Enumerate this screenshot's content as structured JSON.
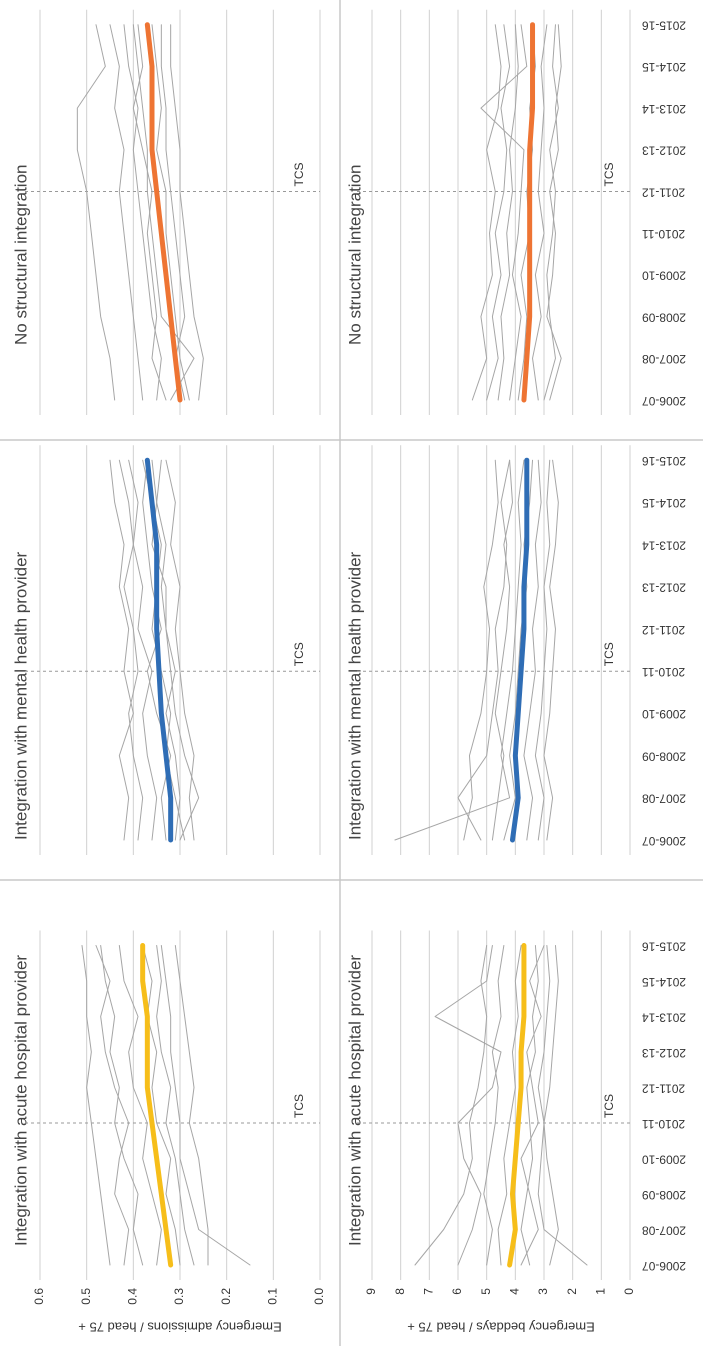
{
  "chart_data": [
    {
      "type": "line",
      "title": "Integration with acute hospital provider",
      "ylabel": "Emergency admissions / head 75 +",
      "show_yticks": true,
      "categories": [
        null,
        null,
        null,
        null,
        null,
        null,
        null,
        null,
        null,
        null
      ],
      "ylim": [
        0,
        0.6
      ],
      "yticks": [
        {
          "value": 0,
          "label": "0.0"
        },
        0.1,
        0.2,
        0.3,
        0.4,
        0.5,
        0.6
      ],
      "grid": true,
      "annotation": {
        "text": "TCS",
        "x": "2010-11"
      },
      "series": [
        {
          "color": "#a6a6a6",
          "values": [
            0.15,
            0.26,
            0.28,
            0.3,
            0.3,
            0.31,
            0.32,
            0.32,
            0.33,
            0.34
          ]
        },
        {
          "color": "#a6a6a6",
          "values": [
            0.45,
            0.46,
            0.47,
            0.48,
            0.49,
            0.5,
            0.49,
            0.5,
            0.5,
            0.51
          ]
        },
        {
          "color": "#a6a6a6",
          "values": [
            0.24,
            0.24,
            0.25,
            0.26,
            0.28,
            0.27,
            0.28,
            0.29,
            0.3,
            0.31
          ]
        },
        {
          "color": "#a6a6a6",
          "values": [
            0.38,
            0.4,
            0.39,
            0.42,
            0.44,
            0.43,
            0.45,
            0.44,
            0.46,
            0.47
          ]
        },
        {
          "color": "#a6a6a6",
          "values": [
            0.3,
            0.31,
            0.33,
            0.32,
            0.35,
            0.36,
            0.35,
            0.37,
            0.36,
            0.38
          ]
        },
        {
          "color": "#a6a6a6",
          "values": [
            0.35,
            0.34,
            0.36,
            0.38,
            0.37,
            0.4,
            0.41,
            0.39,
            0.42,
            0.43
          ]
        },
        {
          "color": "#a6a6a6",
          "values": [
            0.27,
            0.29,
            0.3,
            0.31,
            0.33,
            0.32,
            0.34,
            0.35,
            0.34,
            0.35
          ]
        },
        {
          "color": "#a6a6a6",
          "values": [
            0.42,
            0.41,
            0.44,
            0.43,
            0.41,
            0.44,
            0.46,
            0.47,
            0.45,
            0.48
          ]
        },
        {
          "color": "#f6be1a",
          "highlight": true,
          "values": [
            0.32,
            0.33,
            0.34,
            0.35,
            0.36,
            0.37,
            0.37,
            0.37,
            0.38,
            0.38
          ]
        }
      ]
    },
    {
      "type": "line",
      "title": "Integration with mental health provider",
      "show_yticks": false,
      "categories": [
        null,
        null,
        null,
        null,
        null,
        null,
        null,
        null,
        null,
        null
      ],
      "ylim": [
        0,
        0.6
      ],
      "yticks": [
        0,
        0.1,
        0.2,
        0.3,
        0.4,
        0.5,
        0.6
      ],
      "grid": true,
      "annotation": {
        "text": "TCS",
        "x": "2010-11"
      },
      "series": [
        {
          "color": "#a6a6a6",
          "values": [
            0.3,
            0.26,
            0.29,
            0.31,
            0.32,
            0.33,
            0.34,
            0.33,
            0.35,
            0.36
          ]
        },
        {
          "color": "#a6a6a6",
          "values": [
            0.42,
            0.41,
            0.43,
            0.4,
            0.42,
            0.41,
            0.43,
            0.42,
            0.44,
            0.45
          ]
        },
        {
          "color": "#a6a6a6",
          "values": [
            0.27,
            0.28,
            0.27,
            0.29,
            0.3,
            0.31,
            0.3,
            0.32,
            0.31,
            0.33
          ]
        },
        {
          "color": "#a6a6a6",
          "values": [
            0.36,
            0.35,
            0.37,
            0.38,
            0.36,
            0.39,
            0.38,
            0.4,
            0.39,
            0.41
          ]
        },
        {
          "color": "#a6a6a6",
          "values": [
            0.33,
            0.34,
            0.32,
            0.35,
            0.37,
            0.34,
            0.36,
            0.37,
            0.38,
            0.37
          ]
        },
        {
          "color": "#a6a6a6",
          "values": [
            0.29,
            0.31,
            0.33,
            0.32,
            0.34,
            0.36,
            0.35,
            0.34,
            0.36,
            0.38
          ]
        },
        {
          "color": "#a6a6a6",
          "values": [
            0.39,
            0.38,
            0.4,
            0.41,
            0.39,
            0.4,
            0.42,
            0.4,
            0.41,
            0.43
          ]
        },
        {
          "color": "#a6a6a6",
          "values": [
            0.31,
            0.3,
            0.31,
            0.33,
            0.31,
            0.33,
            0.33,
            0.36,
            0.35,
            0.34
          ]
        },
        {
          "color": "#2f6db5",
          "highlight": true,
          "values": [
            0.32,
            0.32,
            0.33,
            0.34,
            0.345,
            0.35,
            0.35,
            0.35,
            0.36,
            0.37
          ]
        }
      ]
    },
    {
      "type": "line",
      "title": "No structural integration",
      "show_yticks": false,
      "categories": [
        null,
        null,
        null,
        null,
        null,
        null,
        null,
        null,
        null,
        null
      ],
      "ylim": [
        0,
        0.6
      ],
      "yticks": [
        0,
        0.1,
        0.2,
        0.3,
        0.4,
        0.5,
        0.6
      ],
      "grid": true,
      "annotation": {
        "text": "TCS",
        "x": "2011-12"
      },
      "series": [
        {
          "color": "#a6a6a6",
          "values": [
            0.26,
            0.25,
            0.27,
            0.28,
            0.29,
            0.3,
            0.3,
            0.31,
            0.32,
            0.32
          ]
        },
        {
          "color": "#a6a6a6",
          "values": [
            0.44,
            0.45,
            0.47,
            0.48,
            0.49,
            0.5,
            0.52,
            0.52,
            0.46,
            0.48
          ]
        },
        {
          "color": "#a6a6a6",
          "values": [
            0.32,
            0.27,
            0.34,
            0.35,
            0.36,
            0.37,
            0.37,
            0.38,
            0.39,
            0.4
          ]
        },
        {
          "color": "#a6a6a6",
          "values": [
            0.38,
            0.39,
            0.4,
            0.41,
            0.42,
            0.43,
            0.42,
            0.44,
            0.43,
            0.45
          ]
        },
        {
          "color": "#a6a6a6",
          "values": [
            0.28,
            0.3,
            0.31,
            0.32,
            0.33,
            0.33,
            0.35,
            0.34,
            0.35,
            0.36
          ]
        },
        {
          "color": "#a6a6a6",
          "values": [
            0.35,
            0.34,
            0.36,
            0.37,
            0.38,
            0.39,
            0.4,
            0.39,
            0.41,
            0.42
          ]
        },
        {
          "color": "#a6a6a6",
          "values": [
            0.29,
            0.31,
            0.29,
            0.3,
            0.31,
            0.32,
            0.33,
            0.33,
            0.34,
            0.34
          ]
        },
        {
          "color": "#a6a6a6",
          "values": [
            0.33,
            0.36,
            0.35,
            0.36,
            0.37,
            0.36,
            0.38,
            0.4,
            0.38,
            0.39
          ]
        },
        {
          "color": "#ee7433",
          "highlight": true,
          "values": [
            0.3,
            0.31,
            0.32,
            0.33,
            0.34,
            0.35,
            0.36,
            0.36,
            0.36,
            0.37
          ]
        }
      ]
    },
    {
      "type": "line",
      "title": "Integration with acute hospital provider",
      "ylabel": "Emergency beddays / head 75 +",
      "show_yticks": true,
      "categories": [
        "2006-07",
        "2007-08",
        "2008-09",
        "2009-10",
        "2010-11",
        "2011-12",
        "2012-13",
        "2013-14",
        "2014-15",
        "2015-16"
      ],
      "ylim": [
        0,
        9
      ],
      "yticks": [
        0,
        1,
        2,
        3,
        4,
        5,
        6,
        7,
        8,
        9
      ],
      "grid": true,
      "annotation": {
        "text": "TCS",
        "x": "2010-11"
      },
      "series": [
        {
          "color": "#a6a6a6",
          "values": [
            1.5,
            3.0,
            3.2,
            3.1,
            3.0,
            3.2,
            3.0,
            2.9,
            2.8,
            2.9
          ]
        },
        {
          "color": "#a6a6a6",
          "values": [
            7.5,
            6.5,
            5.8,
            5.5,
            5.6,
            5.3,
            5.1,
            5.0,
            5.2,
            5.0
          ]
        },
        {
          "color": "#a6a6a6",
          "values": [
            6.0,
            5.5,
            5.2,
            5.8,
            6.0,
            4.8,
            4.5,
            6.8,
            5.0,
            4.8
          ]
        },
        {
          "color": "#a6a6a6",
          "values": [
            2.8,
            2.5,
            2.7,
            2.9,
            3.0,
            2.8,
            2.7,
            2.6,
            2.5,
            2.6
          ]
        },
        {
          "color": "#a6a6a6",
          "values": [
            4.5,
            4.6,
            4.3,
            4.4,
            4.2,
            4.0,
            4.1,
            3.9,
            4.0,
            3.8
          ]
        },
        {
          "color": "#a6a6a6",
          "values": [
            3.5,
            3.8,
            3.6,
            3.4,
            3.5,
            3.6,
            3.3,
            3.4,
            3.2,
            3.3
          ]
        },
        {
          "color": "#a6a6a6",
          "values": [
            5.0,
            4.8,
            5.1,
            4.9,
            4.7,
            4.6,
            4.8,
            4.5,
            4.6,
            4.4
          ]
        },
        {
          "color": "#a6a6a6",
          "values": [
            3.8,
            3.2,
            3.5,
            3.8,
            3.2,
            3.4,
            3.6,
            3.1,
            3.5,
            3.0
          ]
        },
        {
          "color": "#f6be1a",
          "highlight": true,
          "values": [
            4.2,
            4.0,
            4.1,
            4.0,
            3.9,
            3.8,
            3.8,
            3.7,
            3.7,
            3.7
          ]
        }
      ]
    },
    {
      "type": "line",
      "title": "Integration with mental health provider",
      "show_yticks": false,
      "categories": [
        "2006-07",
        "2007-08",
        "2008-09",
        "2009-10",
        "2010-11",
        "2011-12",
        "2012-13",
        "2013-14",
        "2014-15",
        "2015-16"
      ],
      "ylim": [
        0,
        9
      ],
      "yticks": [
        0,
        1,
        2,
        3,
        4,
        5,
        6,
        7,
        8,
        9
      ],
      "grid": true,
      "annotation": {
        "text": "TCS",
        "x": "2010-11"
      },
      "series": [
        {
          "color": "#a6a6a6",
          "values": [
            8.2,
            4.2,
            4.5,
            4.3,
            4.1,
            4.0,
            3.9,
            3.8,
            3.9,
            3.7
          ]
        },
        {
          "color": "#a6a6a6",
          "values": [
            5.8,
            5.5,
            5.6,
            5.2,
            5.0,
            4.9,
            5.1,
            4.8,
            4.6,
            4.7
          ]
        },
        {
          "color": "#a6a6a6",
          "values": [
            3.2,
            3.0,
            3.3,
            3.1,
            3.0,
            2.9,
            3.0,
            2.8,
            2.9,
            2.8
          ]
        },
        {
          "color": "#a6a6a6",
          "values": [
            4.8,
            4.6,
            4.4,
            4.7,
            4.5,
            4.3,
            4.2,
            4.4,
            4.1,
            4.2
          ]
        },
        {
          "color": "#a6a6a6",
          "values": [
            3.6,
            3.4,
            3.7,
            3.5,
            3.3,
            3.4,
            3.2,
            3.3,
            3.1,
            3.2
          ]
        },
        {
          "color": "#a6a6a6",
          "values": [
            5.2,
            6.0,
            5.0,
            4.8,
            4.6,
            4.7,
            4.4,
            4.3,
            4.5,
            4.2
          ]
        },
        {
          "color": "#a6a6a6",
          "values": [
            2.9,
            2.7,
            3.0,
            2.8,
            2.7,
            2.6,
            2.8,
            2.6,
            2.5,
            2.7
          ]
        },
        {
          "color": "#a6a6a6",
          "values": [
            4.4,
            4.0,
            4.2,
            4.0,
            3.9,
            3.8,
            3.6,
            3.7,
            3.5,
            3.4
          ]
        },
        {
          "color": "#2f6db5",
          "highlight": true,
          "values": [
            4.1,
            3.9,
            4.0,
            3.9,
            3.8,
            3.7,
            3.7,
            3.6,
            3.6,
            3.6
          ]
        }
      ]
    },
    {
      "type": "line",
      "title": "No structural integration",
      "show_yticks": false,
      "categories": [
        "2006-07",
        "2007-08",
        "2008-09",
        "2009-10",
        "2010-11",
        "2011-12",
        "2012-13",
        "2013-14",
        "2014-15",
        "2015-16"
      ],
      "ylim": [
        0,
        9
      ],
      "yticks": [
        0,
        1,
        2,
        3,
        4,
        5,
        6,
        7,
        8,
        9
      ],
      "grid": true,
      "annotation": {
        "text": "TCS",
        "x": "2011-12"
      },
      "series": [
        {
          "color": "#a6a6a6",
          "values": [
            5.5,
            5.0,
            5.2,
            4.8,
            4.9,
            4.7,
            5.0,
            4.6,
            4.5,
            4.7
          ]
        },
        {
          "color": "#a6a6a6",
          "values": [
            2.8,
            2.4,
            2.9,
            2.7,
            2.6,
            2.8,
            2.5,
            2.6,
            2.4,
            2.5
          ]
        },
        {
          "color": "#a6a6a6",
          "values": [
            4.2,
            4.0,
            3.8,
            4.1,
            3.9,
            3.8,
            3.7,
            5.2,
            3.6,
            3.8
          ]
        },
        {
          "color": "#a6a6a6",
          "values": [
            3.2,
            3.4,
            3.1,
            3.3,
            3.0,
            3.2,
            3.1,
            3.0,
            3.1,
            2.9
          ]
        },
        {
          "color": "#a6a6a6",
          "values": [
            4.6,
            4.4,
            4.5,
            4.2,
            4.3,
            4.1,
            4.2,
            4.0,
            3.9,
            4.0
          ]
        },
        {
          "color": "#a6a6a6",
          "values": [
            3.9,
            3.7,
            3.6,
            3.8,
            3.5,
            3.6,
            3.4,
            3.5,
            3.3,
            3.4
          ]
        },
        {
          "color": "#a6a6a6",
          "values": [
            3.0,
            2.6,
            2.8,
            2.9,
            2.7,
            2.6,
            2.8,
            2.5,
            2.7,
            2.6
          ]
        },
        {
          "color": "#a6a6a6",
          "values": [
            5.0,
            4.6,
            4.8,
            4.5,
            4.7,
            4.4,
            4.3,
            4.5,
            4.2,
            4.4
          ]
        },
        {
          "color": "#ee7433",
          "highlight": true,
          "values": [
            3.7,
            3.6,
            3.5,
            3.5,
            3.5,
            3.5,
            3.5,
            3.4,
            3.4,
            3.4
          ]
        }
      ]
    }
  ]
}
